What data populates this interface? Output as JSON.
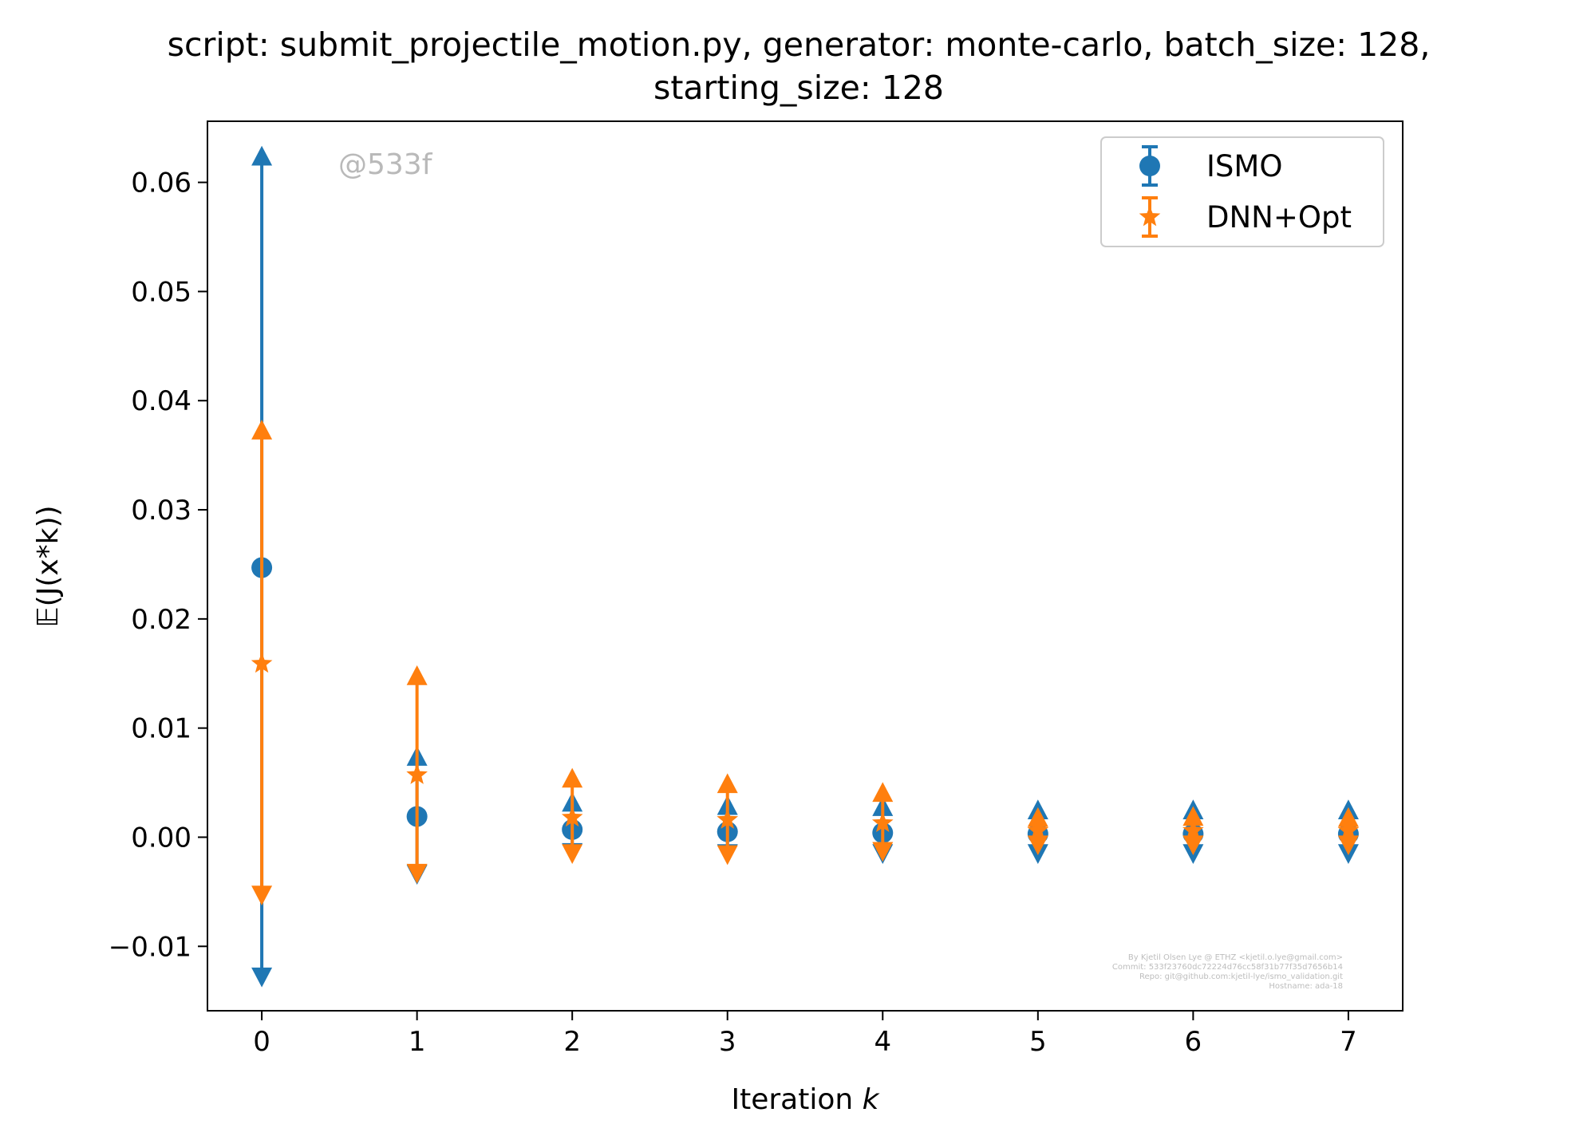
{
  "chart_data": {
    "type": "scatter",
    "title_line1": "script: submit_projectile_motion.py, generator: monte-carlo, batch_size: 128,",
    "title_line2": "starting_size: 128",
    "xlabel_prefix": "Iteration ",
    "xlabel_var": "k",
    "ylabel": "𝔼(J(x*k))",
    "xlim": [
      -0.35,
      7.35
    ],
    "ylim": [
      -0.0159,
      0.0656
    ],
    "x_ticks": [
      0,
      1,
      2,
      3,
      4,
      5,
      6,
      7
    ],
    "x_tick_labels": [
      "0",
      "1",
      "2",
      "3",
      "4",
      "5",
      "6",
      "7"
    ],
    "y_ticks": [
      -0.01,
      0.0,
      0.01,
      0.02,
      0.03,
      0.04,
      0.05,
      0.06
    ],
    "y_tick_labels": [
      "−0.01",
      "0.00",
      "0.01",
      "0.02",
      "0.03",
      "0.04",
      "0.05",
      "0.06"
    ],
    "grid": false,
    "legend_placement": "top-right",
    "watermark": "@533f",
    "credits": [
      "By Kjetil Olsen Lye @ ETHZ <kjetil.o.lye@gmail.com>",
      "Commit: 533f23760dc72224d76cc58f31b77f35d7656b14",
      "Repo: git@github.com:kjetil-lye/ismo_validation.git",
      "Hostname: ada-18"
    ],
    "series": [
      {
        "name": "ISMO",
        "color": "#1f77b4",
        "marker": "circle",
        "x": [
          0,
          1,
          2,
          3,
          4,
          5,
          6,
          7
        ],
        "y": [
          0.0247,
          0.0019,
          0.0007,
          0.0005,
          0.0004,
          0.0003,
          0.0003,
          0.0003
        ],
        "err_low": [
          -0.0128,
          -0.0034,
          -0.0014,
          -0.0015,
          -0.0015,
          -0.0015,
          -0.0015,
          -0.0015
        ],
        "err_high": [
          0.0624,
          0.0074,
          0.0032,
          0.0029,
          0.0028,
          0.0025,
          0.0025,
          0.0025
        ]
      },
      {
        "name": "DNN+Opt",
        "color": "#ff7f0e",
        "marker": "star",
        "x": [
          0,
          1,
          2,
          3,
          4,
          5,
          6,
          7
        ],
        "y": [
          0.0159,
          0.0057,
          0.0018,
          0.0016,
          0.0013,
          0.0006,
          0.0006,
          0.0006
        ],
        "err_low": [
          -0.0053,
          -0.0033,
          -0.0015,
          -0.0016,
          -0.0013,
          -0.0007,
          -0.0007,
          -0.0007
        ],
        "err_high": [
          0.0373,
          0.0148,
          0.0054,
          0.0049,
          0.0041,
          0.0018,
          0.0019,
          0.0018
        ]
      }
    ]
  }
}
